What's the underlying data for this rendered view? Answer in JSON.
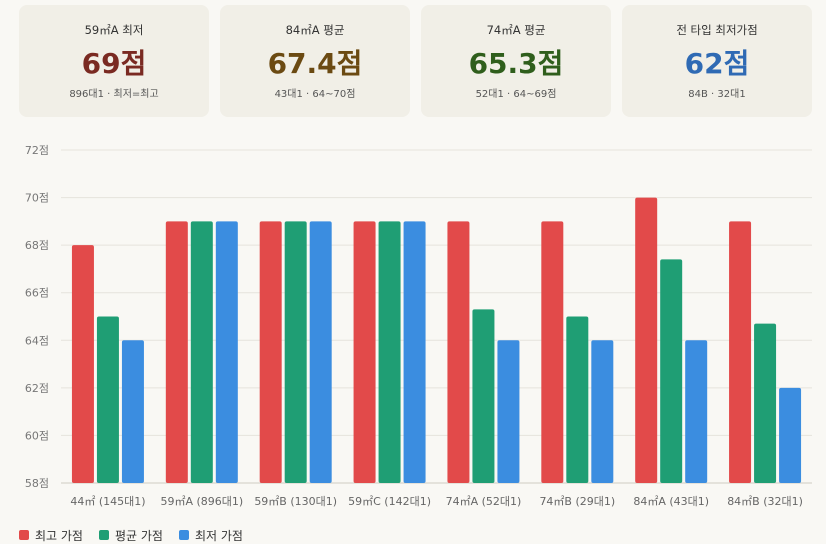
{
  "cards": [
    {
      "label": "59㎡A 최저",
      "value": "69점",
      "sub": "896대1 · 최저=최고",
      "color": "#7a2a22"
    },
    {
      "label": "84㎡A 평균",
      "value": "67.4점",
      "sub": "43대1 · 64~70점",
      "color": "#6b4a12"
    },
    {
      "label": "74㎡A 평균",
      "value": "65.3점",
      "sub": "52대1 · 64~69점",
      "color": "#2f5e1c"
    },
    {
      "label": "전 타입 최저가점",
      "value": "62점",
      "sub": "84B · 32대1",
      "color": "#2f6ab4"
    }
  ],
  "chart_data": {
    "type": "bar",
    "categories": [
      "44㎡ (145대1)",
      "59㎡A (896대1)",
      "59㎡B (130대1)",
      "59㎡C (142대1)",
      "74㎡A (52대1)",
      "74㎡B (29대1)",
      "84㎡A (43대1)",
      "84㎡B (32대1)"
    ],
    "series": [
      {
        "name": "최고 가점",
        "color": "#e24a4a",
        "values": [
          68,
          69,
          69,
          69,
          69,
          69,
          70,
          69
        ]
      },
      {
        "name": "평균 가점",
        "color": "#1f9e74",
        "values": [
          65,
          69,
          69,
          69,
          65.3,
          65,
          67.4,
          64.7
        ]
      },
      {
        "name": "최저 가점",
        "color": "#3b8de0",
        "values": [
          64,
          69,
          69,
          69,
          64,
          64,
          64,
          62
        ]
      }
    ],
    "ylim": [
      58,
      72
    ],
    "yticks": [
      58,
      60,
      62,
      64,
      66,
      68,
      70,
      72
    ],
    "ytick_suffix": "점",
    "grid": true,
    "legend": "bottom-left"
  }
}
